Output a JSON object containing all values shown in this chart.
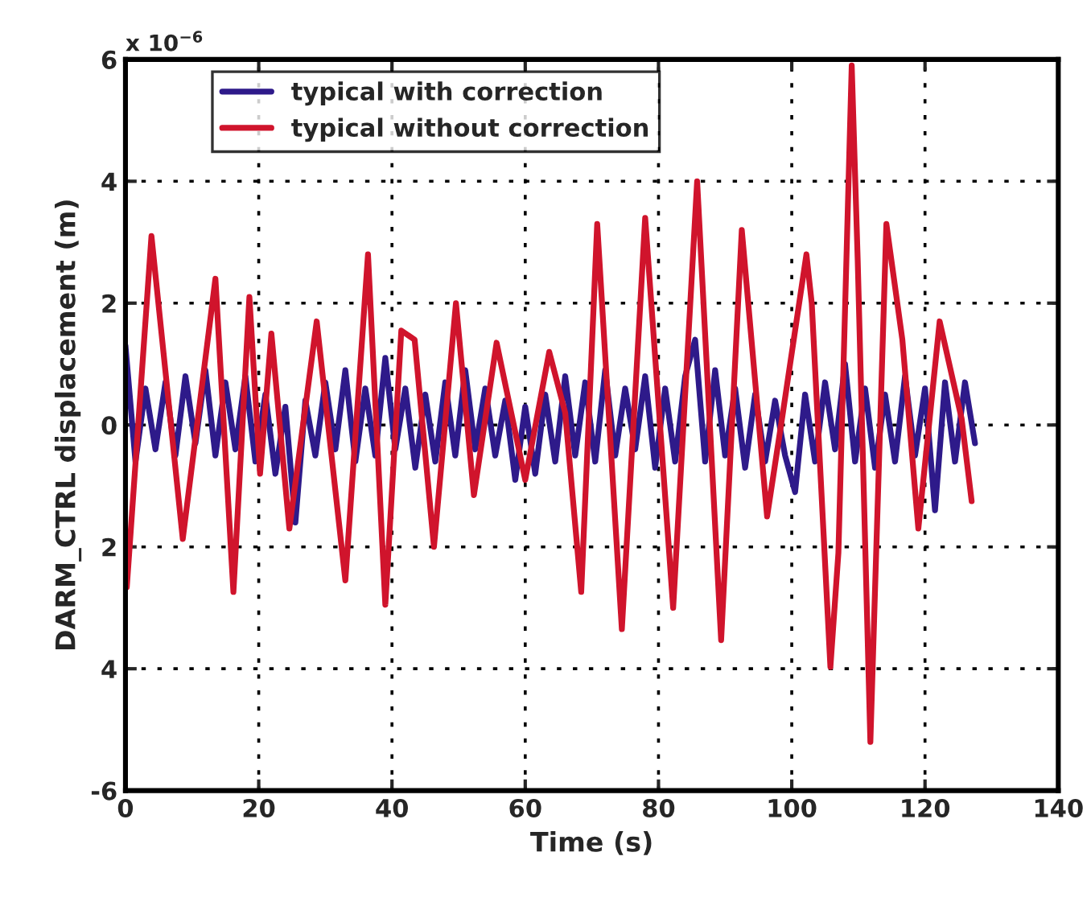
{
  "chart_data": {
    "type": "line",
    "xlabel": "Time (s)",
    "ylabel": "DARM_CTRL displacement (m)",
    "annotations": [
      "x 10$^{−6}$"
    ],
    "xlim": [
      0,
      140
    ],
    "xticks": [
      0,
      20,
      40,
      60,
      80,
      100,
      120,
      140
    ],
    "ylim": [
      -6,
      6
    ],
    "yticks": [
      -6,
      {
        "value": -4,
        "label": "4"
      },
      {
        "value": -2,
        "label": "2"
      },
      0,
      2,
      4,
      6
    ],
    "grid": true,
    "legend": "top left",
    "line_style": "solid",
    "marker": "none",
    "series": [
      {
        "name": "typical with correction",
        "color": "#2e1a8a",
        "x": [
          0,
          1.5,
          3,
          4.5,
          6,
          7.5,
          9,
          10.5,
          12,
          13.5,
          15,
          16.5,
          18,
          19.5,
          21,
          22.5,
          24,
          25.5,
          27,
          28.5,
          30,
          31.5,
          33,
          34.5,
          36,
          37.5,
          39,
          40.5,
          42,
          43.5,
          45,
          46.5,
          48,
          49.5,
          51,
          52.5,
          54,
          55.5,
          57,
          58.5,
          60,
          61.5,
          63,
          64.5,
          66,
          67.5,
          69,
          70.5,
          72,
          73.5,
          75,
          76.5,
          78,
          79.5,
          81,
          82.5,
          84,
          85.5,
          87,
          88.5,
          90,
          91.5,
          93,
          94.5,
          96,
          97.5,
          99,
          100.5,
          102,
          103.5,
          105,
          106.5,
          108,
          109.5,
          111,
          112.5,
          114,
          115.5,
          117,
          118.5,
          120,
          121.5,
          123,
          124.5,
          126,
          127.5
        ],
        "values": [
          1.3,
          -0.6,
          0.6,
          -0.4,
          0.7,
          -0.5,
          0.8,
          -0.3,
          0.9,
          -0.5,
          0.7,
          -0.4,
          0.8,
          -0.6,
          0.5,
          -0.8,
          0.3,
          -1.6,
          0.4,
          -0.5,
          0.7,
          -0.4,
          0.9,
          -0.6,
          0.6,
          -0.5,
          1.1,
          -0.4,
          0.6,
          -0.7,
          0.5,
          -0.6,
          0.7,
          -0.5,
          0.9,
          -0.4,
          0.6,
          -0.5,
          0.4,
          -0.9,
          0.3,
          -0.8,
          0.5,
          -0.6,
          0.8,
          -0.5,
          0.7,
          -0.6,
          0.9,
          -0.5,
          0.6,
          -0.4,
          0.8,
          -0.7,
          0.6,
          -0.6,
          0.8,
          1.4,
          -0.6,
          0.9,
          -0.5,
          0.6,
          -0.7,
          0.5,
          -0.6,
          0.4,
          -0.5,
          -1.1,
          0.5,
          -0.6,
          0.7,
          -0.4,
          1.0,
          -0.6,
          0.6,
          -0.7,
          0.5,
          -0.6,
          0.8,
          -0.5,
          0.6,
          -1.4,
          0.7,
          -0.6,
          0.7,
          -0.3
        ]
      },
      {
        "name": "typical without correction",
        "color": "#d0142c",
        "x": [
          0.2,
          3.9,
          8.6,
          13.5,
          16.2,
          18.6,
          20.2,
          21.9,
          24.6,
          28.7,
          33,
          36.4,
          39,
          41.4,
          43.4,
          46.3,
          49.6,
          52.3,
          55.7,
          60,
          63.6,
          66,
          68.4,
          70.8,
          74.5,
          78,
          82.2,
          85.8,
          89.4,
          92.5,
          96.3,
          98.6,
          102.2,
          103,
          105.8,
          107,
          109,
          109.9,
          111.8,
          112.5,
          114.2,
          116.6,
          119,
          122.2,
          125.5,
          127
        ],
        "values": [
          -2.66,
          3.1,
          -1.87,
          2.4,
          -2.74,
          2.1,
          -0.8,
          1.5,
          -1.7,
          1.7,
          -2.55,
          2.8,
          -2.95,
          1.55,
          1.4,
          -2.0,
          2.0,
          -1.15,
          1.35,
          -0.9,
          1.2,
          0.2,
          -2.74,
          3.3,
          -3.35,
          3.4,
          -3.0,
          4.0,
          -3.53,
          3.2,
          -1.5,
          0.15,
          2.8,
          2.0,
          -3.97,
          -2.1,
          5.9,
          2.7,
          -5.2,
          -2.7,
          3.3,
          1.4,
          -1.7,
          1.7,
          0.1,
          -1.25
        ]
      }
    ]
  }
}
